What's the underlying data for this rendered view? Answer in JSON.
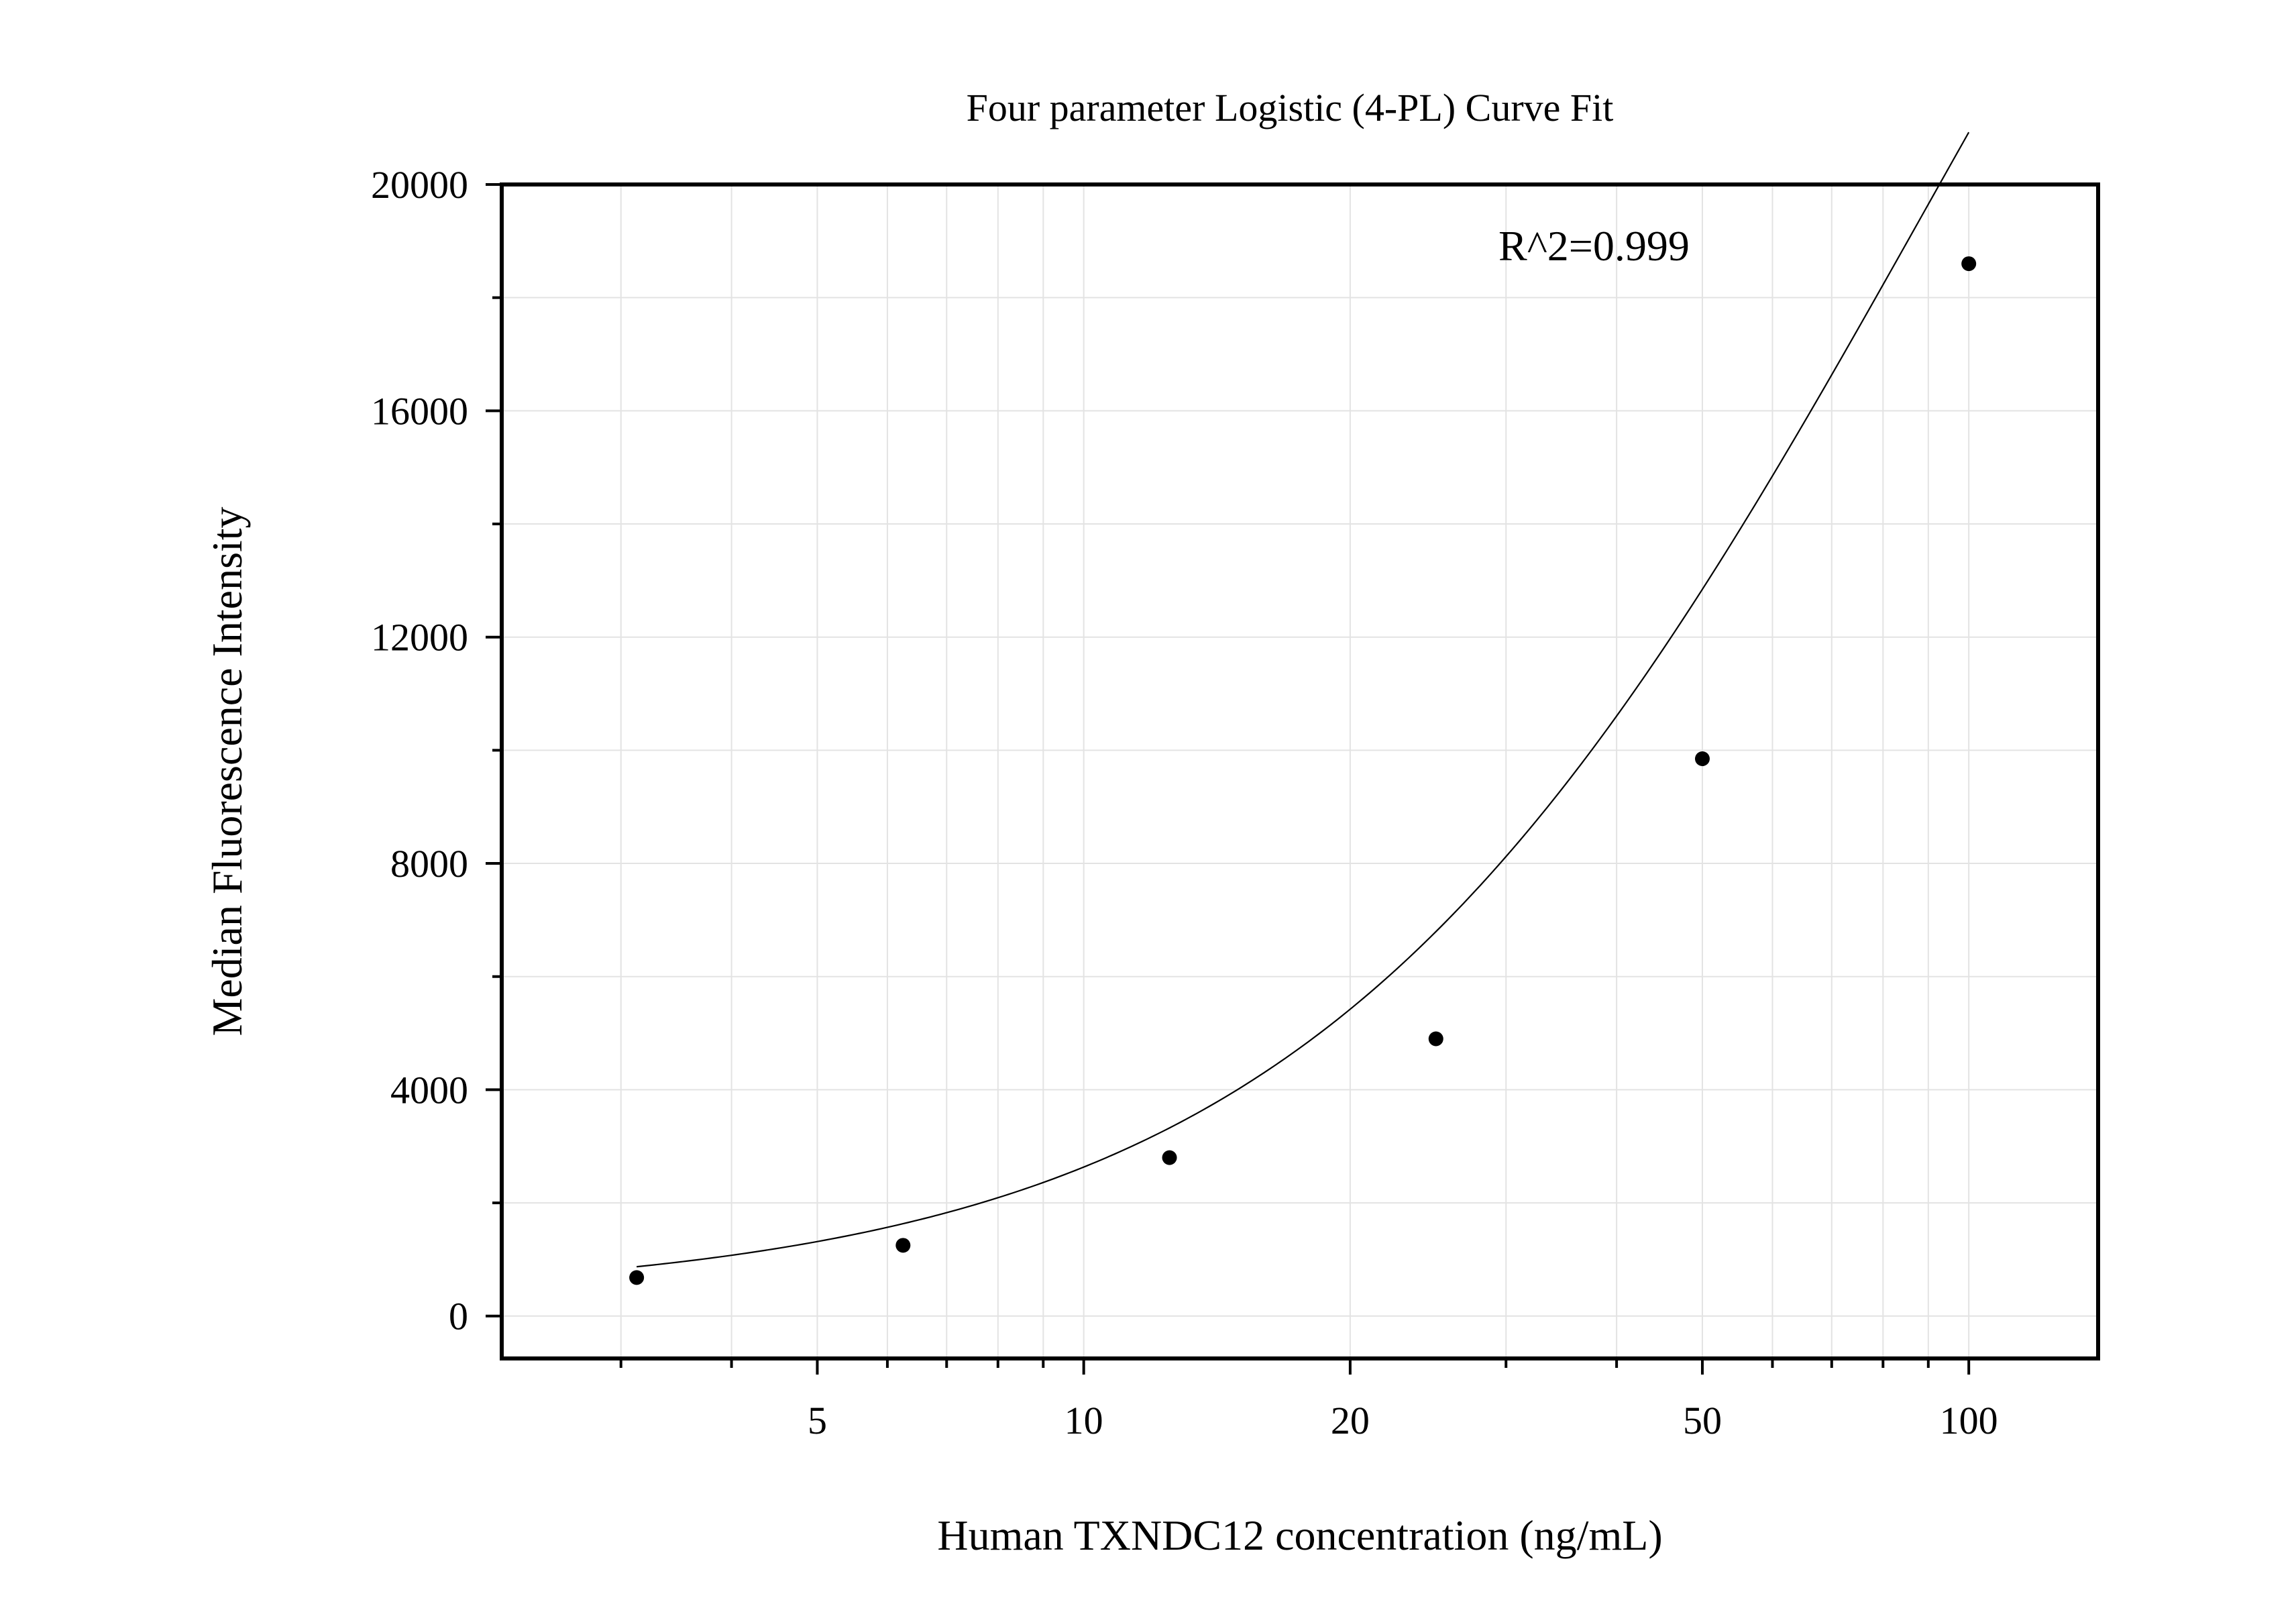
{
  "chart_data": {
    "type": "scatter",
    "title": "Four parameter Logistic (4-PL) Curve Fit",
    "xlabel": "Human TXNDC12 concentration (ng/mL)",
    "ylabel": "Median Fluorescence Intensity",
    "x_scale": "log",
    "xlim": [
      2.2,
      140
    ],
    "ylim": [
      -750,
      20000
    ],
    "x_ticks": [
      5,
      10,
      20,
      50,
      100
    ],
    "x_tick_labels": [
      "5",
      "10",
      "20",
      "50",
      "100"
    ],
    "y_ticks": [
      0,
      4000,
      8000,
      12000,
      16000,
      20000
    ],
    "y_tick_labels": [
      "0",
      "4000",
      "8000",
      "12000",
      "16000",
      "20000"
    ],
    "grid": true,
    "annotation": "R^2=0.999",
    "points": {
      "x": [
        3.125,
        6.25,
        12.5,
        25,
        50,
        100
      ],
      "y": [
        680,
        1250,
        2800,
        4900,
        9850,
        18600
      ]
    },
    "fit": {
      "model": "4PL",
      "A": 300,
      "B": 1.25,
      "C": 90,
      "D": 39000
    }
  }
}
